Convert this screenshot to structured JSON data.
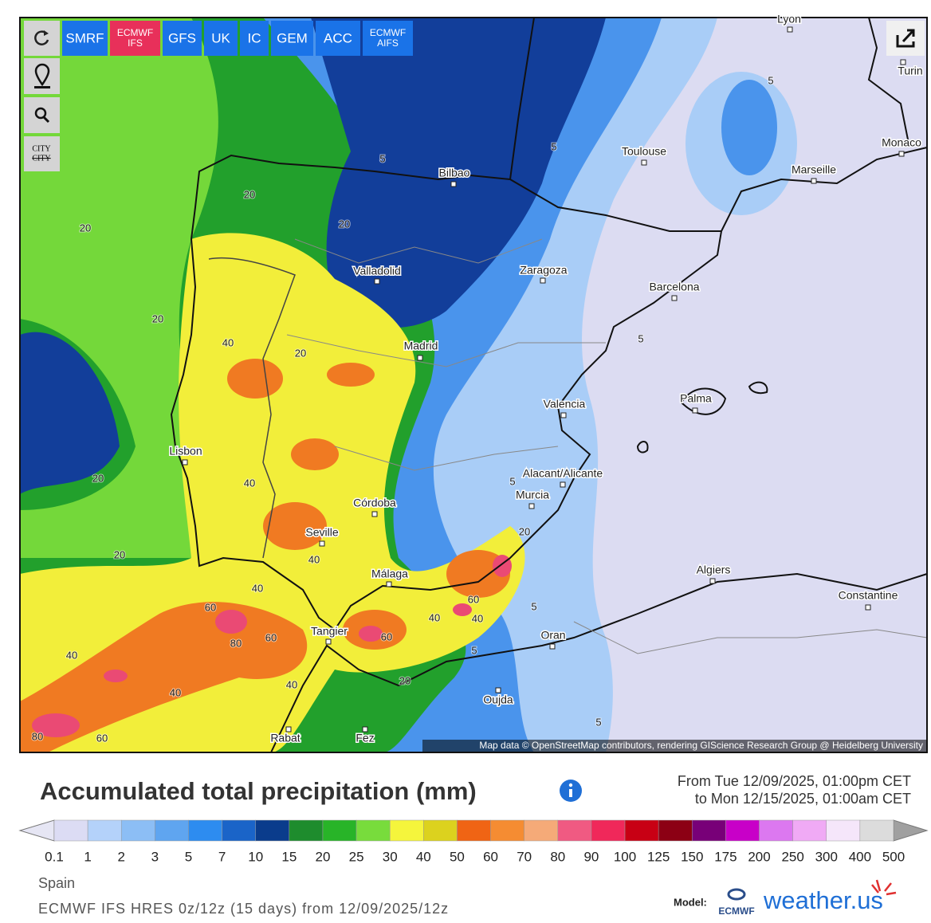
{
  "toolbar": {
    "models": [
      "SMRF",
      [
        "ECMWF",
        "IFS"
      ],
      "GFS",
      "UK",
      "IC",
      "GEM",
      "ACC",
      [
        "ECMWF",
        "AIFS"
      ]
    ],
    "city_toggle": [
      "CITY",
      "CITY"
    ]
  },
  "map": {
    "cities": [
      "Lyon",
      "Turin",
      "Monaco",
      "Toulouse",
      "Marseille",
      "Bilbao",
      "Valladolid",
      "Zaragoza",
      "Barcelona",
      "Madrid",
      "Palma",
      "Valencia",
      "Lisbon",
      "Alacant/Alicante",
      "Murcia",
      "Córdoba",
      "Seville",
      "Málaga",
      "Algiers",
      "Constantine",
      "Tangier",
      "Oran",
      "Oujda",
      "Rabat",
      "Fez"
    ],
    "contour_labels": [
      5,
      5,
      5,
      20,
      20,
      20,
      20,
      40,
      20,
      5,
      20,
      40,
      5,
      20,
      40,
      20,
      40,
      60,
      80,
      60,
      60,
      40,
      40,
      5,
      60,
      40,
      40,
      40,
      5,
      20,
      80,
      60,
      5
    ],
    "attribution": "Map data © OpenStreetMap contributors, rendering GIScience Research Group @ Heidelberg University"
  },
  "legend": {
    "title": "Accumulated total precipitation (mm)",
    "period": [
      "From Tue 12/09/2025, 01:00pm CET",
      "to Mon 12/15/2025, 01:00am CET"
    ],
    "colors": [
      "#dcdcf4",
      "#b4d2fa",
      "#8cbef5",
      "#5fa5f0",
      "#2d8cf0",
      "#1a64c8",
      "#0a3c8c",
      "#1e8c2d",
      "#28b428",
      "#78dc3c",
      "#f5f53c",
      "#dcd21e",
      "#f06414",
      "#f58c32",
      "#f5aa78",
      "#f05a82",
      "#f0285a",
      "#c80014",
      "#8c0014",
      "#780078",
      "#c800c8",
      "#dc78f0",
      "#f0aaf5",
      "#f5e6fa",
      "#dcdcdc"
    ],
    "ticks": [
      0.1,
      1,
      2,
      3,
      5,
      7,
      10,
      15,
      20,
      25,
      30,
      40,
      50,
      60,
      70,
      80,
      90,
      100,
      125,
      150,
      175,
      200,
      250,
      300,
      400,
      500
    ]
  },
  "footer": {
    "region": "Spain",
    "model_run": "ECMWF IFS HRES 0z/12z (15 days) from 12/09/2025/12z",
    "model_label": "Model:",
    "ecmwf": "ECMWF",
    "brand": "weather.us"
  }
}
